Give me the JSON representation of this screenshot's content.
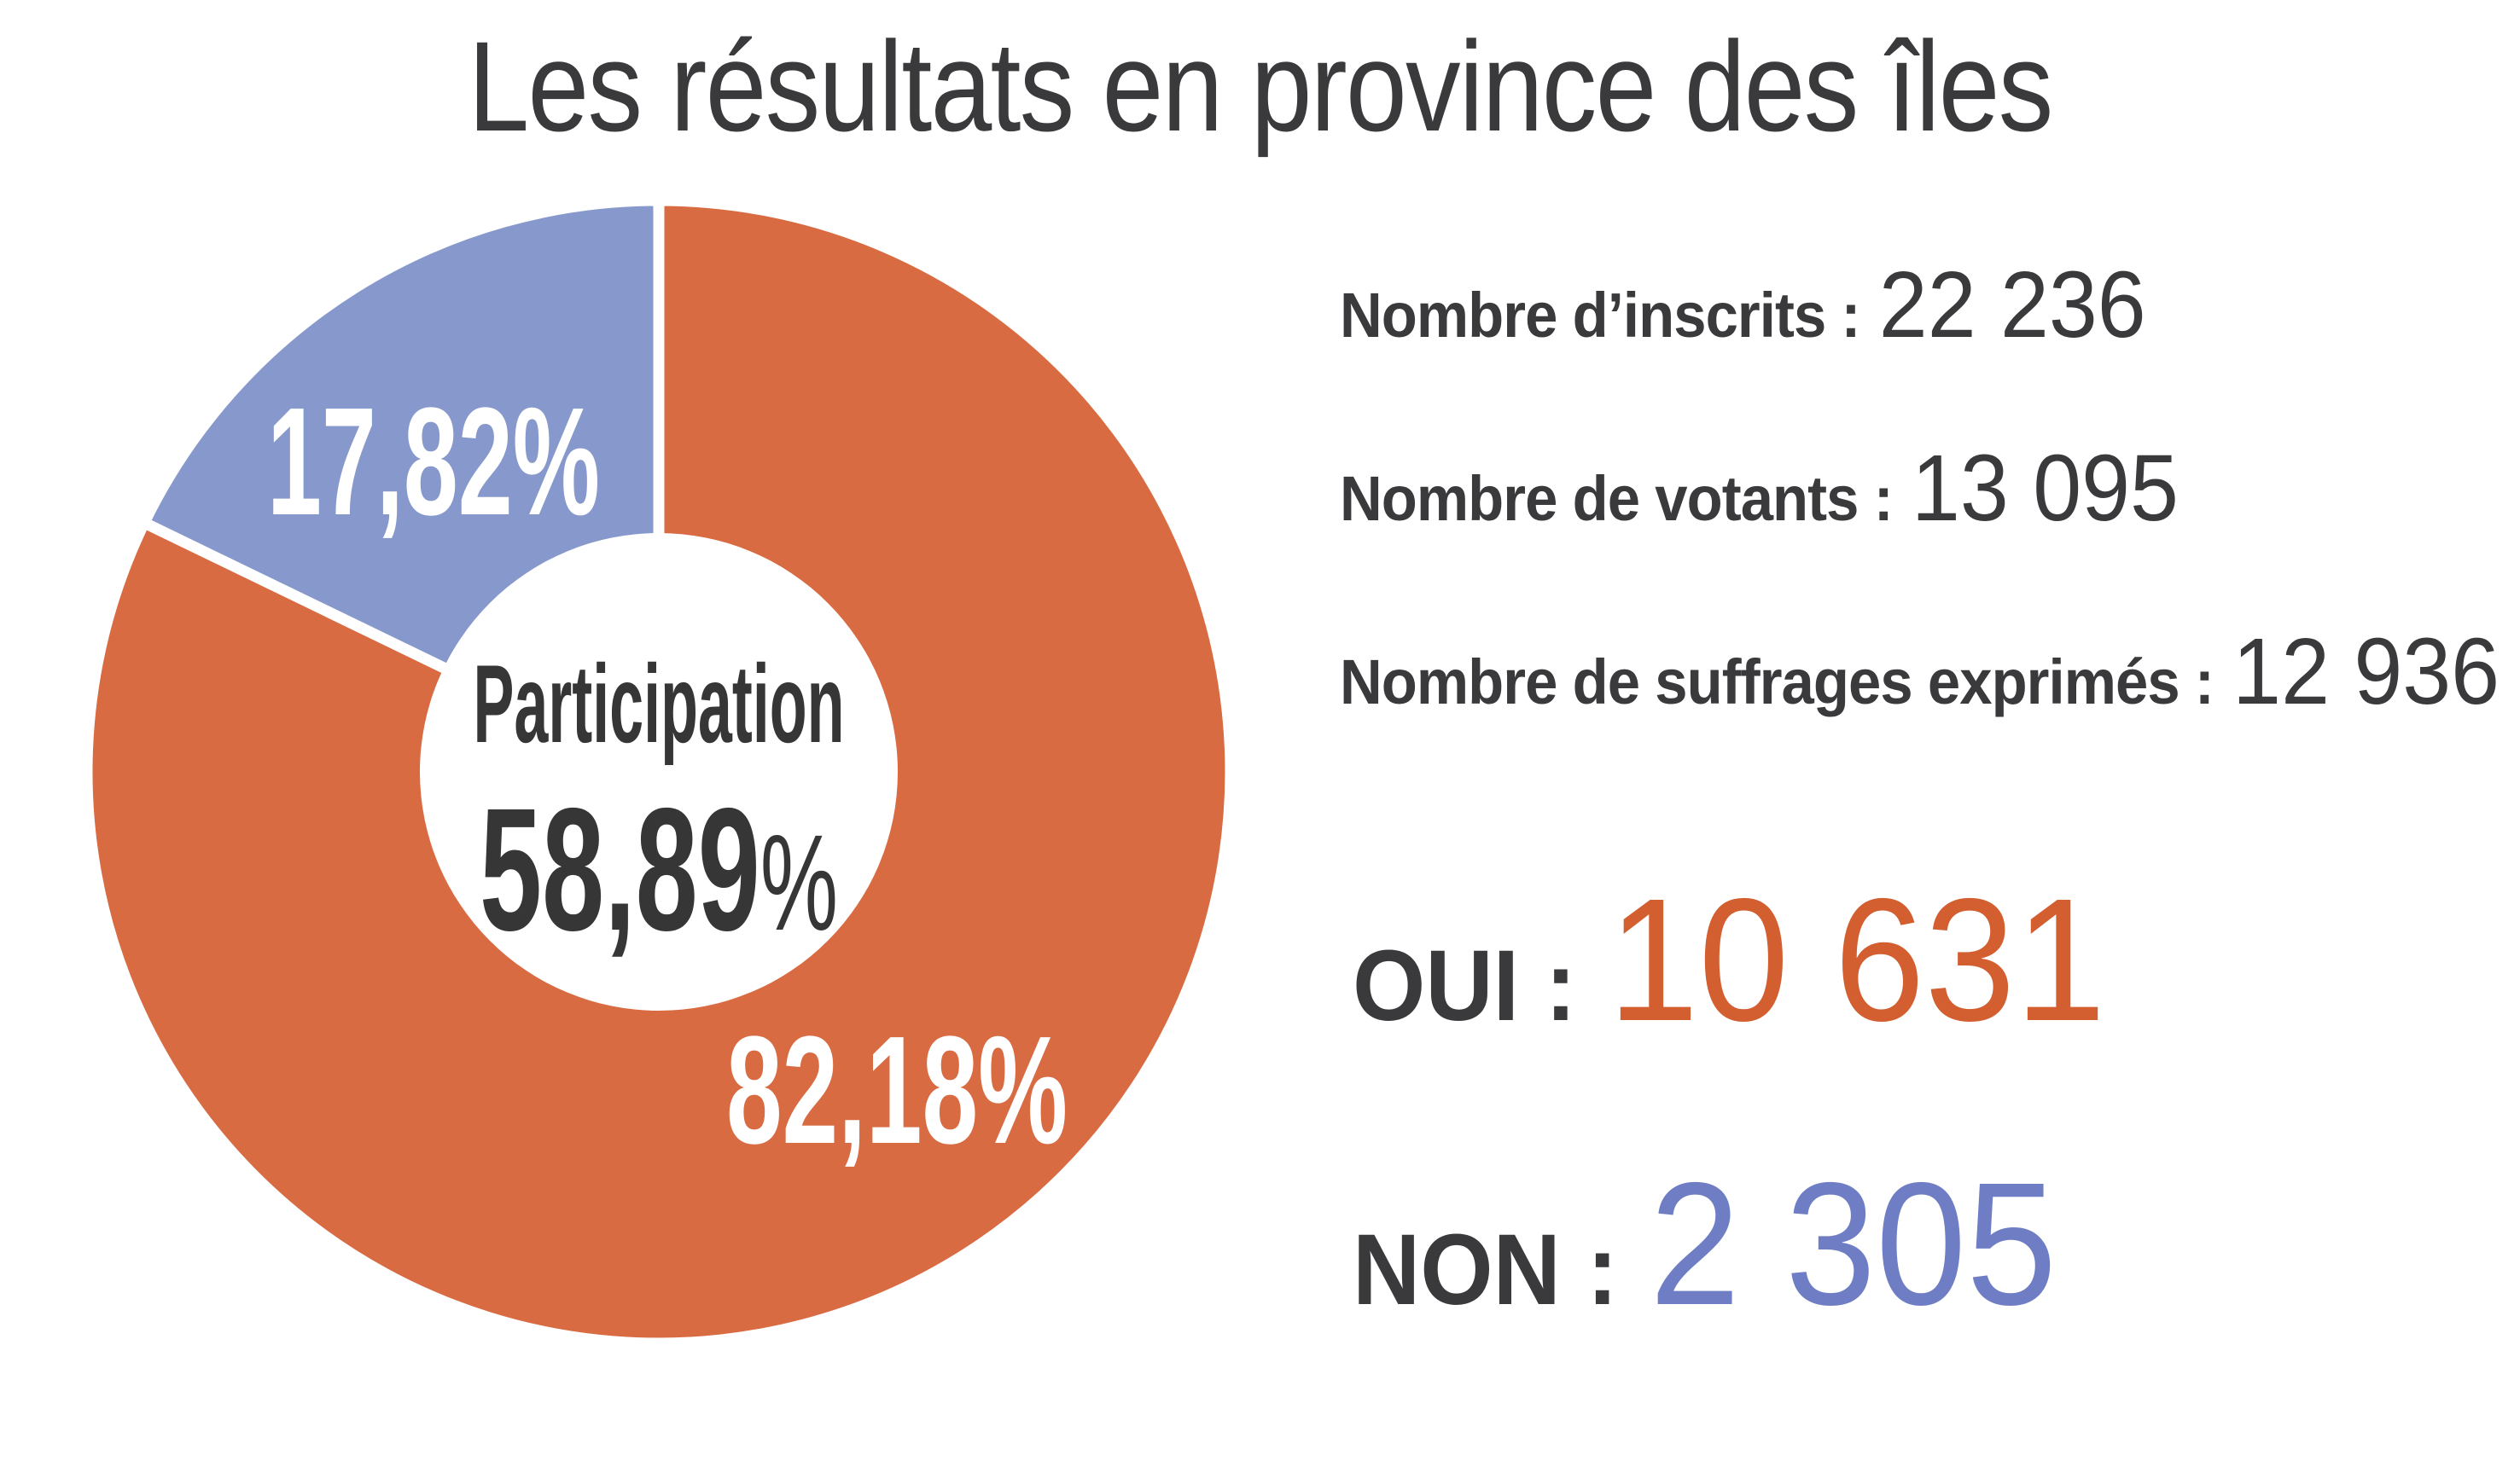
{
  "title": "Les résultats en province des îles",
  "stats": [
    {
      "label": "Nombre d’inscrits :",
      "value": "22 236"
    },
    {
      "label": "Nombre de votants :",
      "value": "13 095"
    },
    {
      "label": "Nombre de suffrages exprimés :",
      "value": "12 936"
    }
  ],
  "results": [
    {
      "label": "OUI :",
      "value": "10 631",
      "color": "#d35e2f"
    },
    {
      "label": "NON :",
      "value": "2 305",
      "color": "#6f7ec4"
    }
  ],
  "chart_data": {
    "type": "pie",
    "subtype": "donut",
    "title": "Participation",
    "slices": [
      {
        "name": "OUI",
        "value": 82.18,
        "display": "82,18%",
        "color": "#d96b42"
      },
      {
        "name": "NON",
        "value": 17.82,
        "display": "17,82%",
        "color": "#8799cc"
      }
    ],
    "center": {
      "label": "Participation",
      "value": "58,89",
      "suffix": "%"
    },
    "start_angle_deg": 0,
    "direction": "clockwise",
    "slice_gap_color": "#ffffff",
    "legend": "none"
  },
  "colors": {
    "background": "#ffffff",
    "text_dark": "#3a3a3c",
    "oui_accent": "#d35e2f",
    "non_accent": "#6f7ec4",
    "slice_oui": "#d96b42",
    "slice_non": "#8799cc"
  }
}
